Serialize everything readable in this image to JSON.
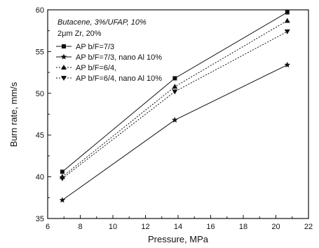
{
  "chart_data": {
    "type": "line",
    "xlabel": "Pressure, MPa",
    "ylabel": "Burn rate, mm/s",
    "xlim": [
      6,
      22
    ],
    "ylim": [
      35,
      60
    ],
    "xticks": [
      6,
      8,
      10,
      12,
      14,
      16,
      18,
      20,
      22
    ],
    "yticks": [
      35,
      40,
      45,
      50,
      55,
      60
    ],
    "grid": false,
    "legend_position": "top-left",
    "annotations": [
      "Butacene, 3%/UFAP, 10%",
      "2μm Zr, 20%"
    ],
    "series": [
      {
        "name": "AP b/F=7/3",
        "marker": "square",
        "line": "solid",
        "x": [
          6.9,
          13.8,
          20.7
        ],
        "y": [
          40.6,
          51.8,
          59.7
        ]
      },
      {
        "name": "AP b/F=7/3, nano Al 10%",
        "marker": "star",
        "line": "solid",
        "x": [
          6.9,
          13.8,
          20.7
        ],
        "y": [
          37.2,
          46.8,
          53.4
        ]
      },
      {
        "name": "AP b/F=6/4,",
        "marker": "triangle-up",
        "line": "dotted",
        "x": [
          6.9,
          13.8,
          20.7
        ],
        "y": [
          40.0,
          50.8,
          58.7
        ]
      },
      {
        "name": "AP b/F=6/4, nano Al 10%",
        "marker": "triangle-down",
        "line": "dotted",
        "x": [
          6.9,
          13.8,
          20.7
        ],
        "y": [
          39.8,
          50.2,
          57.4
        ]
      }
    ]
  }
}
